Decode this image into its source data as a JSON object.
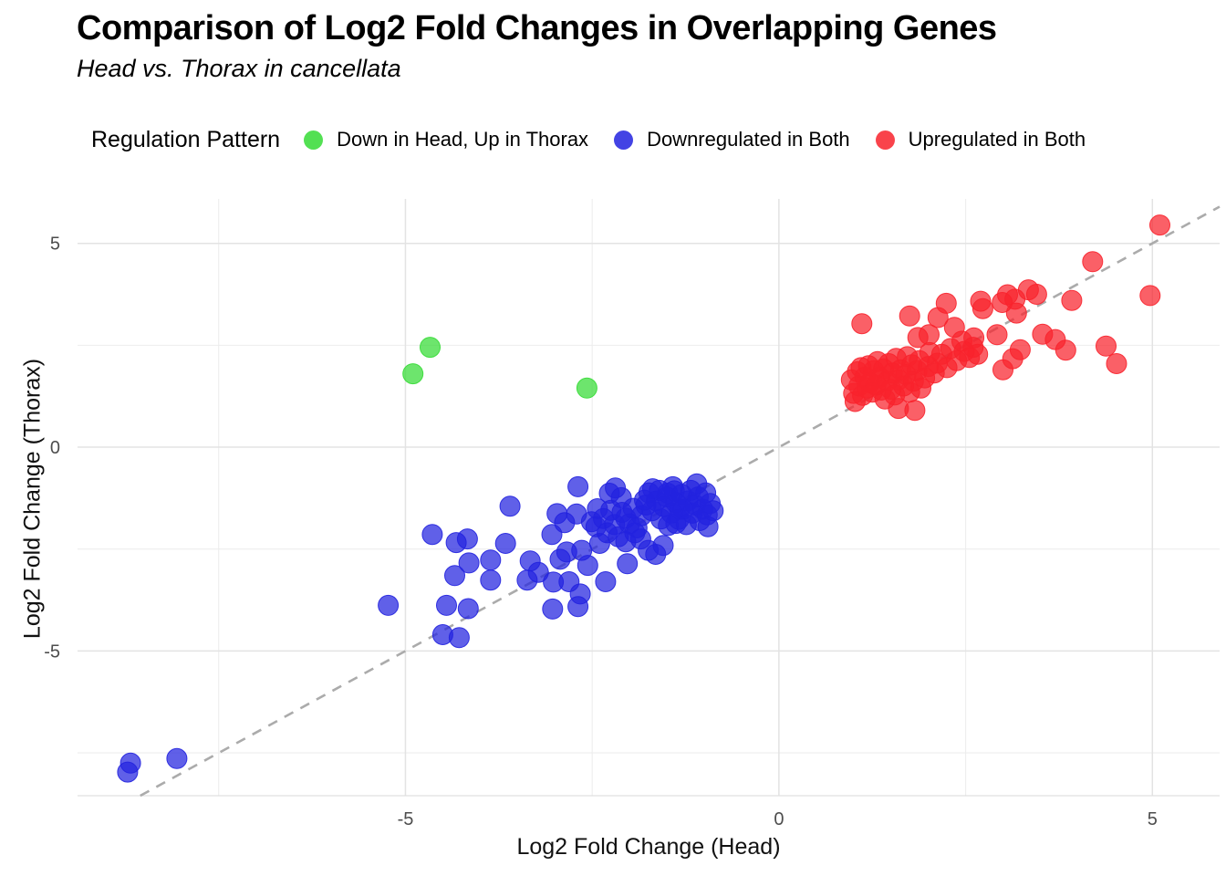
{
  "header": {
    "title": "Comparison of Log2 Fold Changes in Overlapping Genes",
    "subtitle": "Head vs. Thorax in cancellata"
  },
  "legend": {
    "title": "Regulation Pattern",
    "items": [
      {
        "label": "Down in Head, Up in Thorax",
        "color": "#35DB35"
      },
      {
        "label": "Downregulated in Both",
        "color": "#2222DF"
      },
      {
        "label": "Upregulated in Both",
        "color": "#F8222C"
      }
    ]
  },
  "chart_data": {
    "type": "scatter",
    "title": "Comparison of Log2 Fold Changes in Overlapping Genes",
    "subtitle": "Head vs. Thorax in cancellata",
    "xlabel": "Log2 Fold Change (Head)",
    "ylabel": "Log2 Fold Change (Thorax)",
    "xlim": [
      -9.39,
      5.9
    ],
    "ylim": [
      -8.55,
      6.09
    ],
    "x_ticks": [
      -5,
      0,
      5
    ],
    "y_ticks": [
      -5,
      0,
      5
    ],
    "x_minor_gridlines": [
      -7.5,
      -2.5,
      2.5
    ],
    "y_minor_gridlines": [
      -7.5,
      -2.5,
      2.5
    ],
    "grid": "on",
    "legend_position": "top",
    "grid_major_color": "#E3E3E3",
    "grid_minor_color": "#EDEDED",
    "tick_label_color": "#4D4D4D",
    "point_radius_px": 11,
    "point_opacity": 0.72,
    "reference_line": {
      "type": "identity y=x",
      "style": "dashed",
      "color": "#ABABAB"
    },
    "series": [
      {
        "id": "downregulated-both",
        "name": "Downregulated in Both",
        "color": "#2222DF",
        "points": [
          [
            -8.68,
            -7.75
          ],
          [
            -8.72,
            -7.97
          ],
          [
            -8.06,
            -7.64
          ],
          [
            -5.23,
            -3.88
          ],
          [
            -4.64,
            -2.14
          ],
          [
            -4.45,
            -3.88
          ],
          [
            -4.5,
            -4.6
          ],
          [
            -4.28,
            -4.67
          ],
          [
            -4.32,
            -2.34
          ],
          [
            -4.17,
            -2.25
          ],
          [
            -4.34,
            -3.15
          ],
          [
            -4.15,
            -2.84
          ],
          [
            -4.16,
            -3.96
          ],
          [
            -3.86,
            -2.77
          ],
          [
            -3.86,
            -3.26
          ],
          [
            -3.66,
            -2.36
          ],
          [
            -3.6,
            -1.45
          ],
          [
            -3.33,
            -2.79
          ],
          [
            -3.37,
            -3.26
          ],
          [
            -3.22,
            -3.07
          ],
          [
            -3.04,
            -2.14
          ],
          [
            -2.97,
            -1.63
          ],
          [
            -2.93,
            -2.75
          ],
          [
            -3.02,
            -3.31
          ],
          [
            -3.03,
            -3.97
          ],
          [
            -2.87,
            -1.85
          ],
          [
            -2.84,
            -2.57
          ],
          [
            -2.81,
            -3.3
          ],
          [
            -2.69,
            -0.97
          ],
          [
            -2.71,
            -1.64
          ],
          [
            -2.64,
            -2.53
          ],
          [
            -2.66,
            -3.6
          ],
          [
            -2.69,
            -3.91
          ],
          [
            -2.56,
            -2.9
          ],
          [
            -2.51,
            -1.83
          ],
          [
            -2.43,
            -1.51
          ],
          [
            -2.4,
            -2.36
          ],
          [
            -2.32,
            -3.3
          ],
          [
            -2.27,
            -1.13
          ],
          [
            -2.19,
            -1.0
          ],
          [
            -2.11,
            -1.24
          ],
          [
            -2.05,
            -1.74
          ],
          [
            -2.03,
            -2.86
          ],
          [
            -1.93,
            -2.1
          ],
          [
            -1.84,
            -1.68
          ],
          [
            -1.78,
            -1.42
          ],
          [
            -1.75,
            -2.53
          ],
          [
            -1.69,
            -1.02
          ],
          [
            -1.65,
            -2.63
          ],
          [
            -1.55,
            -2.41
          ],
          [
            -1.49,
            -1.13
          ],
          [
            -1.42,
            -0.97
          ],
          [
            -1.38,
            -1.87
          ],
          [
            -1.33,
            -1.52
          ],
          [
            -2.45,
            -1.95
          ],
          [
            -2.35,
            -1.75
          ],
          [
            -2.3,
            -2.1
          ],
          [
            -2.25,
            -1.55
          ],
          [
            -2.2,
            -1.9
          ],
          [
            -2.15,
            -2.2
          ],
          [
            -2.1,
            -1.6
          ],
          [
            -2.0,
            -1.88
          ],
          [
            -1.95,
            -1.5
          ],
          [
            -1.9,
            -1.98
          ],
          [
            -2.05,
            -2.32
          ],
          [
            -1.85,
            -2.25
          ],
          [
            -1.8,
            -1.3
          ],
          [
            -1.74,
            -1.12
          ],
          [
            -1.7,
            -1.56
          ],
          [
            -1.64,
            -1.32
          ],
          [
            -1.6,
            -1.06
          ],
          [
            -1.58,
            -1.76
          ],
          [
            -1.54,
            -1.46
          ],
          [
            -1.5,
            -1.22
          ],
          [
            -1.48,
            -1.92
          ],
          [
            -1.44,
            -1.62
          ],
          [
            -1.4,
            -1.07
          ],
          [
            -1.38,
            -1.36
          ],
          [
            -1.34,
            -1.77
          ],
          [
            -1.3,
            -1.16
          ],
          [
            -1.28,
            -1.52
          ],
          [
            -1.24,
            -1.9
          ],
          [
            -1.22,
            -1.32
          ],
          [
            -1.18,
            -1.06
          ],
          [
            -1.16,
            -1.62
          ],
          [
            -1.12,
            -1.42
          ],
          [
            -1.08,
            -1.22
          ],
          [
            -1.06,
            -1.8
          ],
          [
            -1.02,
            -1.52
          ],
          [
            -0.98,
            -1.12
          ],
          [
            -0.96,
            -1.66
          ],
          [
            -0.92,
            -1.38
          ],
          [
            -0.88,
            -1.56
          ],
          [
            -1.1,
            -0.9
          ],
          [
            -0.95,
            -1.95
          ]
        ]
      },
      {
        "id": "upregulated-both",
        "name": "Upregulated in Both",
        "color": "#F8222C",
        "points": [
          [
            5.1,
            5.45
          ],
          [
            4.2,
            4.55
          ],
          [
            4.97,
            3.72
          ],
          [
            3.92,
            3.6
          ],
          [
            3.34,
            3.86
          ],
          [
            3.45,
            3.75
          ],
          [
            3.06,
            3.74
          ],
          [
            3.16,
            3.63
          ],
          [
            2.99,
            3.55
          ],
          [
            3.18,
            3.29
          ],
          [
            2.7,
            3.58
          ],
          [
            2.73,
            3.4
          ],
          [
            2.24,
            3.53
          ],
          [
            2.13,
            3.18
          ],
          [
            1.75,
            3.22
          ],
          [
            1.11,
            3.03
          ],
          [
            2.92,
            2.76
          ],
          [
            2.61,
            2.68
          ],
          [
            2.66,
            2.28
          ],
          [
            2.35,
            2.94
          ],
          [
            2.01,
            2.76
          ],
          [
            1.86,
            2.69
          ],
          [
            3.53,
            2.77
          ],
          [
            3.7,
            2.64
          ],
          [
            3.84,
            2.38
          ],
          [
            4.38,
            2.48
          ],
          [
            4.52,
            2.05
          ],
          [
            3.23,
            2.39
          ],
          [
            3.13,
            2.17
          ],
          [
            3.0,
            1.9
          ],
          [
            2.45,
            2.6
          ],
          [
            0.97,
            1.65
          ],
          [
            1.0,
            1.32
          ],
          [
            1.02,
            1.12
          ],
          [
            1.05,
            1.85
          ],
          [
            1.07,
            1.5
          ],
          [
            1.1,
            1.95
          ],
          [
            1.12,
            1.27
          ],
          [
            1.15,
            1.72
          ],
          [
            1.18,
            1.45
          ],
          [
            1.2,
            2.0
          ],
          [
            1.22,
            1.58
          ],
          [
            1.25,
            1.35
          ],
          [
            1.27,
            1.88
          ],
          [
            1.3,
            1.52
          ],
          [
            1.32,
            2.1
          ],
          [
            1.35,
            1.72
          ],
          [
            1.37,
            1.4
          ],
          [
            1.4,
            1.92
          ],
          [
            1.42,
            1.18
          ],
          [
            1.45,
            1.62
          ],
          [
            1.47,
            2.05
          ],
          [
            1.5,
            1.42
          ],
          [
            1.52,
            1.82
          ],
          [
            1.55,
            1.28
          ],
          [
            1.57,
            2.18
          ],
          [
            1.6,
            1.65
          ],
          [
            1.6,
            0.95
          ],
          [
            1.63,
            1.9
          ],
          [
            1.67,
            1.5
          ],
          [
            1.7,
            1.78
          ],
          [
            1.72,
            2.22
          ],
          [
            1.75,
            1.35
          ],
          [
            1.78,
            2.02
          ],
          [
            1.8,
            1.62
          ],
          [
            1.82,
            0.9
          ],
          [
            1.85,
            1.88
          ],
          [
            1.88,
            2.12
          ],
          [
            1.9,
            1.45
          ],
          [
            1.95,
            1.7
          ],
          [
            2.0,
            1.98
          ],
          [
            2.02,
            2.32
          ],
          [
            2.08,
            1.82
          ],
          [
            2.12,
            2.06
          ],
          [
            2.18,
            2.28
          ],
          [
            2.25,
            1.95
          ],
          [
            2.3,
            2.42
          ],
          [
            2.38,
            2.12
          ],
          [
            2.48,
            2.35
          ],
          [
            2.55,
            2.2
          ],
          [
            2.6,
            2.45
          ]
        ]
      },
      {
        "id": "down-head-up-thorax",
        "name": "Down in Head, Up in Thorax",
        "color": "#35DB35",
        "points": [
          [
            -4.9,
            1.8
          ],
          [
            -4.67,
            2.45
          ],
          [
            -2.57,
            1.45
          ]
        ]
      }
    ]
  }
}
